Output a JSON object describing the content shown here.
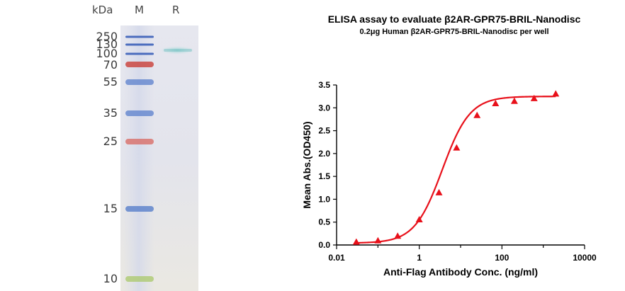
{
  "gel": {
    "unit_label": "kDa",
    "lane_labels": [
      "M",
      "R"
    ],
    "markers": [
      {
        "kda": "250",
        "color": "#3b5fb8"
      },
      {
        "kda": "130",
        "color": "#3b5fb8"
      },
      {
        "kda": "100",
        "color": "#3b5fb8"
      },
      {
        "kda": "70",
        "color": "#c8332b"
      },
      {
        "kda": "55",
        "color": "#5a7fcc"
      },
      {
        "kda": "35",
        "color": "#5a7fcc"
      },
      {
        "kda": "25",
        "color": "#d8665f"
      },
      {
        "kda": "15",
        "color": "#4f78c8"
      },
      {
        "kda": "10",
        "color": "#a9c86a"
      }
    ]
  },
  "chart_data": {
    "type": "scatter",
    "title": "ELISA assay to evaluate β2AR-GPR75-BRIL-Nanodisc",
    "subtitle": "0.2μg Human β2AR-GPR75-BRIL-Nanodisc per well",
    "xlabel": "Anti-Flag Antibody Conc. (ng/ml)",
    "ylabel": "Mean Abs.(OD450)",
    "x_scale": "log",
    "xlim": [
      0.01,
      10000
    ],
    "ylim": [
      0.0,
      3.5
    ],
    "x_ticks": [
      "0.01",
      "1",
      "100",
      "10000"
    ],
    "y_ticks": [
      "0.0",
      "0.5",
      "1.0",
      "1.5",
      "2.0",
      "2.5",
      "3.0",
      "3.5"
    ],
    "marker": "triangle",
    "color": "#e8101a",
    "fit": "4PL",
    "series": [
      {
        "x": [
          0.03,
          0.1,
          0.3,
          1,
          3,
          8,
          25,
          70,
          200,
          600,
          2000
        ],
        "y": [
          0.06,
          0.09,
          0.19,
          0.55,
          1.14,
          2.12,
          2.83,
          3.09,
          3.14,
          3.2,
          3.3
        ]
      }
    ]
  }
}
